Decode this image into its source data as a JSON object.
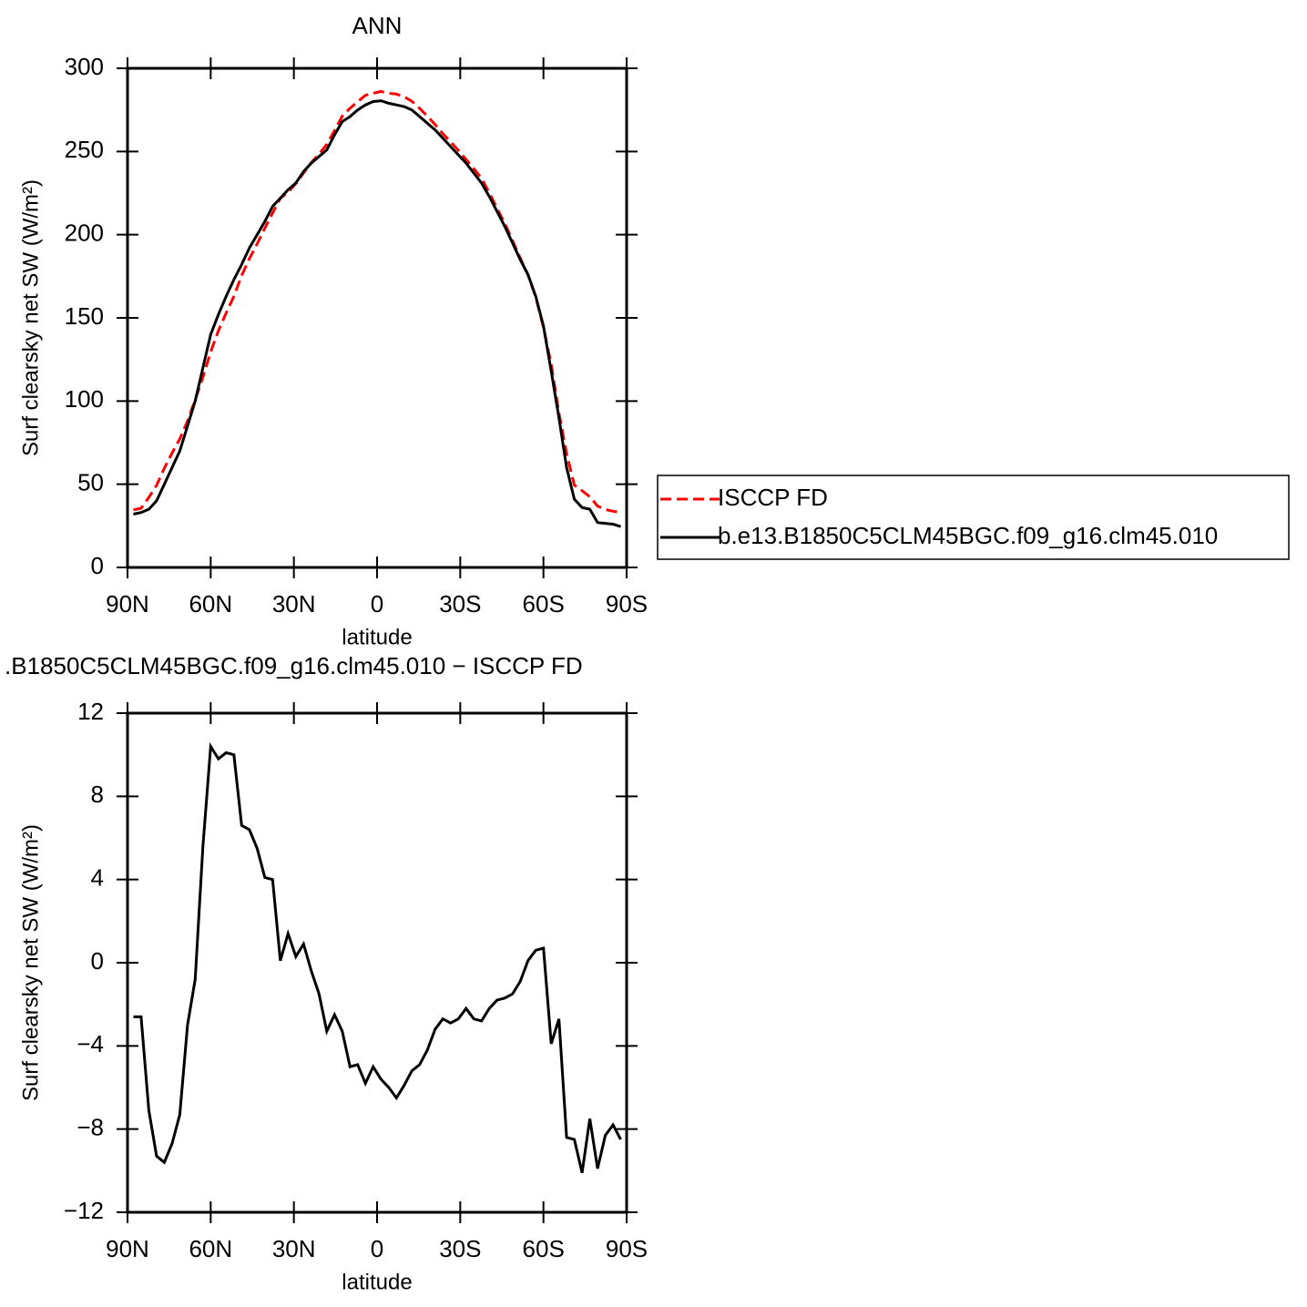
{
  "chart_data": [
    {
      "type": "line",
      "title": "ANN",
      "xlabel": "latitude",
      "ylabel": "Surf clearsky net SW (W/m²)",
      "x": [
        87.86,
        85.1,
        82.31,
        79.53,
        76.74,
        73.95,
        71.16,
        68.37,
        65.58,
        62.79,
        60.0,
        57.21,
        54.42,
        51.63,
        48.84,
        46.04,
        43.25,
        40.46,
        37.67,
        34.88,
        32.09,
        29.3,
        26.51,
        23.72,
        20.93,
        18.14,
        15.35,
        12.56,
        9.77,
        6.98,
        4.19,
        1.4,
        -1.4,
        -4.19,
        -6.98,
        -9.77,
        -12.56,
        -15.35,
        -18.14,
        -20.93,
        -23.72,
        -26.51,
        -29.3,
        -32.09,
        -34.88,
        -37.67,
        -40.46,
        -43.25,
        -46.04,
        -48.84,
        -51.63,
        -54.42,
        -57.21,
        -60.0,
        -62.79,
        -65.58,
        -68.37,
        -71.16,
        -73.95,
        -76.74,
        -79.53,
        -82.31,
        -85.1,
        -87.86
      ],
      "series": [
        {
          "name": "ISCCP FD",
          "color": "#ff0000",
          "dash": true,
          "values": [
            34.6,
            35.6,
            42.1,
            49.3,
            59.6,
            68.7,
            77.3,
            88,
            100.8,
            114.4,
            129.6,
            142.2,
            152.9,
            163,
            175.4,
            185.6,
            194.5,
            203.9,
            213,
            221.9,
            225.6,
            230.7,
            237.1,
            243.4,
            248.5,
            254.3,
            262.5,
            271.3,
            276,
            279.9,
            283.8,
            285,
            286.1,
            285,
            284.5,
            282.9,
            280.2,
            275.9,
            271.2,
            266.2,
            260.7,
            255.9,
            250.7,
            245.2,
            239.7,
            233.8,
            225.2,
            215.8,
            206.7,
            196.5,
            185.9,
            175.9,
            162.4,
            144.3,
            121.9,
            92.7,
            68.4,
            49.5,
            46.1,
            42.5,
            36.9,
            34.8,
            33.8,
            33
          ]
        },
        {
          "name": "b.e13.B1850C5CLM45BGC.f09_g16.clm45.010",
          "color": "#000000",
          "dash": false,
          "values": [
            32,
            33,
            35,
            40,
            50,
            60,
            70,
            85,
            100,
            120,
            140,
            152,
            163,
            173,
            182,
            192,
            200,
            208,
            217,
            222,
            227,
            231,
            238,
            243,
            247,
            251,
            260,
            268,
            271,
            275,
            278,
            280,
            280.5,
            279,
            278,
            277,
            275,
            271,
            267,
            263,
            258,
            253,
            248,
            243,
            237,
            231,
            223,
            214,
            205,
            195,
            185,
            176,
            163,
            145,
            118,
            90,
            60,
            41,
            36,
            35,
            27,
            26.5,
            26,
            24.5
          ]
        }
      ],
      "xlim": [
        90,
        -90
      ],
      "ylim": [
        0,
        300
      ],
      "xticks": [
        {
          "value": 90,
          "label": "90N"
        },
        {
          "value": 60,
          "label": "60N"
        },
        {
          "value": 30,
          "label": "30N"
        },
        0,
        {
          "value": -30,
          "label": "30S"
        },
        {
          "value": -60,
          "label": "60S"
        },
        {
          "value": -90,
          "label": "90S"
        }
      ],
      "yticks": [
        0,
        50,
        100,
        150,
        200,
        250,
        300
      ],
      "legend": "right"
    },
    {
      "type": "line",
      "title": ".B1850C5CLM45BGC.f09_g16.clm45.010 − ISCCP FD",
      "xlabel": "latitude",
      "ylabel": "Surf clearsky net SW (W/m²)",
      "x": [
        87.86,
        85.1,
        82.31,
        79.53,
        76.74,
        73.95,
        71.16,
        68.37,
        65.58,
        62.79,
        60.0,
        57.21,
        54.42,
        51.63,
        48.84,
        46.04,
        43.25,
        40.46,
        37.67,
        34.88,
        32.09,
        29.3,
        26.51,
        23.72,
        20.93,
        18.14,
        15.35,
        12.56,
        9.77,
        6.98,
        4.19,
        1.4,
        -1.4,
        -4.19,
        -6.98,
        -9.77,
        -12.56,
        -15.35,
        -18.14,
        -20.93,
        -23.72,
        -26.51,
        -29.3,
        -32.09,
        -34.88,
        -37.67,
        -40.46,
        -43.25,
        -46.04,
        -48.84,
        -51.63,
        -54.42,
        -57.21,
        -60.0,
        -62.79,
        -65.58,
        -68.37,
        -71.16,
        -73.95,
        -76.74,
        -79.53,
        -82.31,
        -85.1,
        -87.86
      ],
      "series": [
        {
          "color": "#000000",
          "dash": false,
          "values": [
            -2.6,
            -2.6,
            -7.1,
            -9.3,
            -9.6,
            -8.7,
            -7.3,
            -3.0,
            -0.8,
            5.6,
            10.4,
            9.8,
            10.1,
            10.0,
            6.6,
            6.4,
            5.5,
            4.1,
            4.0,
            0.1,
            1.4,
            0.3,
            0.9,
            -0.4,
            -1.5,
            -3.3,
            -2.5,
            -3.3,
            -5.0,
            -4.9,
            -5.8,
            -5.0,
            -5.6,
            -6.0,
            -6.5,
            -5.9,
            -5.2,
            -4.9,
            -4.2,
            -3.2,
            -2.7,
            -2.9,
            -2.7,
            -2.2,
            -2.7,
            -2.8,
            -2.2,
            -1.8,
            -1.7,
            -1.5,
            -0.9,
            0.1,
            0.6,
            0.7,
            -3.9,
            -2.7,
            -8.4,
            -8.5,
            -10.1,
            -7.5,
            -9.9,
            -8.3,
            -7.8,
            -8.5
          ]
        }
      ],
      "xlim": [
        90,
        -90
      ],
      "ylim": [
        -12,
        12
      ],
      "xticks": [
        {
          "value": 90,
          "label": "90N"
        },
        {
          "value": 60,
          "label": "60N"
        },
        {
          "value": 30,
          "label": "30N"
        },
        0,
        {
          "value": -30,
          "label": "30S"
        },
        {
          "value": -60,
          "label": "60S"
        },
        {
          "value": -90,
          "label": "90S"
        }
      ],
      "yticks": [
        {
          "value": -12,
          "label": "−12"
        },
        {
          "value": -8,
          "label": "−8"
        },
        {
          "value": -4,
          "label": "−4"
        },
        0,
        4,
        8,
        12
      ]
    }
  ]
}
